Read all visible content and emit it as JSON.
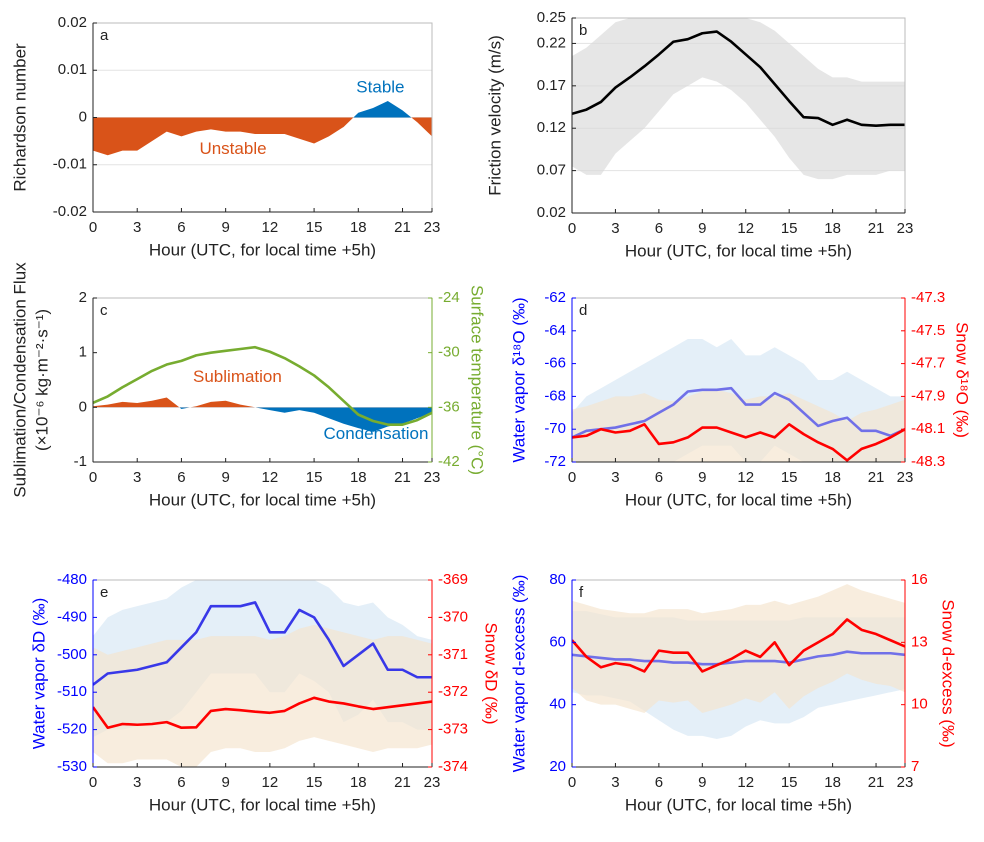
{
  "chart_data": [
    {
      "type": "area",
      "label": "a",
      "ylabel": "Richardson number",
      "xlabel": "Hour (UTC, for local time +5h)",
      "x": [
        0,
        1,
        2,
        3,
        4,
        5,
        6,
        7,
        8,
        9,
        10,
        11,
        12,
        13,
        14,
        15,
        16,
        17,
        18,
        19,
        20,
        21,
        22,
        23
      ],
      "xlim": [
        0,
        23
      ],
      "xticks": [
        0,
        3,
        6,
        9,
        12,
        15,
        18,
        21,
        23
      ],
      "ylim": [
        -0.02,
        0.02
      ],
      "yticks": [
        -0.02,
        -0.01,
        0,
        0.01,
        0.02
      ],
      "grid": true,
      "annotations": [
        "Stable",
        "Unstable"
      ],
      "series": [
        {
          "type": "area",
          "positive_color": "#0072bd",
          "negative_color": "#d95319",
          "values": [
            -0.007,
            -0.008,
            -0.007,
            -0.007,
            -0.005,
            -0.003,
            -0.004,
            -0.003,
            -0.0025,
            -0.003,
            -0.003,
            -0.0035,
            -0.0035,
            -0.0035,
            -0.0045,
            -0.0055,
            -0.004,
            -0.002,
            0.001,
            0.002,
            0.0035,
            0.0015,
            -0.001,
            -0.004
          ]
        }
      ]
    },
    {
      "type": "line",
      "label": "b",
      "ylabel": "Friction velocity (m/s)",
      "xlabel": "Hour (UTC, for local time +5h)",
      "x": [
        0,
        1,
        2,
        3,
        4,
        5,
        6,
        7,
        8,
        9,
        10,
        11,
        12,
        13,
        14,
        15,
        16,
        17,
        18,
        19,
        20,
        21,
        22,
        23
      ],
      "xlim": [
        0,
        23
      ],
      "xticks": [
        0,
        3,
        6,
        9,
        12,
        15,
        18,
        21,
        23
      ],
      "ylim": [
        0.02,
        0.25
      ],
      "yticks": [
        0.02,
        0.07,
        0.12,
        0.17,
        0.22,
        0.25
      ],
      "grid": true,
      "series": [
        {
          "type": "line",
          "color": "#000000",
          "band_color": "#d9d9d9",
          "values": [
            0.137,
            0.142,
            0.151,
            0.168,
            0.18,
            0.193,
            0.207,
            0.222,
            0.225,
            0.232,
            0.234,
            0.222,
            0.207,
            0.192,
            0.172,
            0.152,
            0.133,
            0.132,
            0.124,
            0.13,
            0.124,
            0.123,
            0.124,
            0.124
          ],
          "upper": [
            0.205,
            0.215,
            0.23,
            0.245,
            0.25,
            0.25,
            0.25,
            0.25,
            0.25,
            0.25,
            0.25,
            0.25,
            0.25,
            0.245,
            0.235,
            0.22,
            0.205,
            0.19,
            0.18,
            0.18,
            0.175,
            0.175,
            0.175,
            0.175
          ],
          "lower": [
            0.075,
            0.065,
            0.065,
            0.09,
            0.105,
            0.12,
            0.14,
            0.16,
            0.17,
            0.18,
            0.175,
            0.165,
            0.15,
            0.13,
            0.11,
            0.085,
            0.065,
            0.06,
            0.06,
            0.065,
            0.065,
            0.065,
            0.07,
            0.07
          ]
        }
      ]
    },
    {
      "type": "area",
      "label": "c",
      "ylabel": [
        "Sublimation/Condensation Flux",
        "(×10⁻⁶ kg·m⁻²·s⁻¹)"
      ],
      "y2label": "Surface temperature (°C)",
      "xlabel": "Hour (UTC, for local time +5h)",
      "x": [
        0,
        1,
        2,
        3,
        4,
        5,
        6,
        7,
        8,
        9,
        10,
        11,
        12,
        13,
        14,
        15,
        16,
        17,
        18,
        19,
        20,
        21,
        22,
        23
      ],
      "xlim": [
        0,
        23
      ],
      "xticks": [
        0,
        3,
        6,
        9,
        12,
        15,
        18,
        21,
        23
      ],
      "ylim": [
        -1,
        2
      ],
      "yticks": [
        -1,
        0,
        1,
        2
      ],
      "y2lim": [
        -42,
        -24
      ],
      "y2ticks": [
        -42,
        -36,
        -30,
        -24
      ],
      "y2_color": "#77ac30",
      "annotations": [
        "Sublimation",
        "Condensation"
      ],
      "series": [
        {
          "type": "area",
          "positive_color": "#d95319",
          "negative_color": "#0072bd",
          "values": [
            0.02,
            0.05,
            0.1,
            0.08,
            0.12,
            0.18,
            -0.03,
            0.02,
            0.1,
            0.12,
            0.05,
            0.0,
            -0.05,
            -0.1,
            -0.05,
            -0.1,
            -0.2,
            -0.3,
            -0.38,
            -0.45,
            -0.35,
            -0.3,
            -0.2,
            -0.1
          ]
        },
        {
          "type": "line",
          "axis": "y2",
          "color": "#77ac30",
          "values": [
            -35.5,
            -34.8,
            -33.8,
            -32.9,
            -32.0,
            -31.3,
            -30.9,
            -30.3,
            -30.0,
            -29.8,
            -29.6,
            -29.4,
            -29.9,
            -30.6,
            -31.5,
            -32.5,
            -33.8,
            -35.3,
            -36.8,
            -37.5,
            -37.9,
            -37.9,
            -37.4,
            -36.6
          ]
        }
      ]
    },
    {
      "type": "line",
      "label": "d",
      "ylabel": "Water vapor δ¹⁸O (‰)",
      "y2label": "Snow δ¹⁸O (‰)",
      "xlabel": "Hour (UTC, for local time +5h)",
      "x": [
        0,
        1,
        2,
        3,
        4,
        5,
        6,
        7,
        8,
        9,
        10,
        11,
        12,
        13,
        14,
        15,
        16,
        17,
        18,
        19,
        20,
        21,
        22,
        23
      ],
      "xlim": [
        0,
        23
      ],
      "xticks": [
        0,
        3,
        6,
        9,
        12,
        15,
        18,
        21,
        23
      ],
      "ylim": [
        -72,
        -62
      ],
      "yticks": [
        -72,
        -70,
        -68,
        -66,
        -64,
        -62
      ],
      "y2lim": [
        -48.3,
        -47.3
      ],
      "y2ticks": [
        -48.3,
        -48.1,
        -47.9,
        -47.7,
        -47.5,
        -47.3
      ],
      "y_color": "#0000ff",
      "y2_color": "#ff0000",
      "series": [
        {
          "type": "line",
          "color": "#7070e8",
          "band_color": "#d6e6f5",
          "values": [
            -70.5,
            -70.1,
            -70.0,
            -69.9,
            -69.7,
            -69.5,
            -69.0,
            -68.5,
            -67.7,
            -67.6,
            -67.6,
            -67.5,
            -68.5,
            -68.5,
            -67.8,
            -68.2,
            -69.0,
            -69.8,
            -69.5,
            -69.3,
            -70.1,
            -70.1,
            -70.4,
            -70.0
          ],
          "upper": [
            -69,
            -68,
            -67.5,
            -67,
            -66.5,
            -66,
            -65.5,
            -65,
            -64.5,
            -64.5,
            -65,
            -64.5,
            -65.5,
            -65.5,
            -65,
            -65.5,
            -66,
            -67,
            -67,
            -66.5,
            -67,
            -67.5,
            -68,
            -68
          ],
          "lower": [
            -72,
            -72,
            -72,
            -72,
            -72,
            -72,
            -72,
            -72,
            -71.5,
            -71,
            -71,
            -71,
            -72,
            -72,
            -71,
            -71.5,
            -72,
            -72,
            -72,
            -72,
            -72,
            -72,
            -72,
            -72
          ]
        },
        {
          "type": "line",
          "axis": "y2",
          "color": "#ff0000",
          "band_color": "#f5e3cc",
          "values": [
            -48.15,
            -48.14,
            -48.1,
            -48.12,
            -48.11,
            -48.07,
            -48.19,
            -48.18,
            -48.15,
            -48.09,
            -48.09,
            -48.12,
            -48.15,
            -48.12,
            -48.15,
            -48.07,
            -48.13,
            -48.18,
            -48.22,
            -48.29,
            -48.22,
            -48.19,
            -48.15,
            -48.1
          ],
          "upper": [
            -47.98,
            -47.96,
            -47.93,
            -47.9,
            -47.9,
            -47.88,
            -47.92,
            -47.93,
            -47.9,
            -47.87,
            -47.86,
            -47.88,
            -47.92,
            -47.9,
            -47.9,
            -47.88,
            -47.92,
            -47.96,
            -48.0,
            -48.05,
            -48.0,
            -47.98,
            -47.95,
            -47.92
          ],
          "lower": [
            -48.32,
            -48.33,
            -48.3,
            -48.31,
            -48.32,
            -48.3,
            -48.34,
            -48.35,
            -48.33,
            -48.3,
            -48.3,
            -48.31,
            -48.33,
            -48.32,
            -48.33,
            -48.3,
            -48.32,
            -48.35,
            -48.38,
            -48.4,
            -48.38,
            -48.36,
            -48.34,
            -48.3
          ]
        }
      ]
    },
    {
      "type": "line",
      "label": "e",
      "ylabel": "Water vapor δD (‰)",
      "y2label": "Snow δD (‰)",
      "xlabel": "Hour (UTC, for local time +5h)",
      "x": [
        0,
        1,
        2,
        3,
        4,
        5,
        6,
        7,
        8,
        9,
        10,
        11,
        12,
        13,
        14,
        15,
        16,
        17,
        18,
        19,
        20,
        21,
        22,
        23
      ],
      "xlim": [
        0,
        23
      ],
      "xticks": [
        0,
        3,
        6,
        9,
        12,
        15,
        18,
        21,
        23
      ],
      "ylim": [
        -530,
        -480
      ],
      "yticks": [
        -530,
        -520,
        -510,
        -500,
        -490,
        -480
      ],
      "y2lim": [
        -374,
        -369
      ],
      "y2ticks": [
        -374,
        -373,
        -372,
        -371,
        -370,
        -369
      ],
      "y_color": "#0000ff",
      "y2_color": "#ff0000",
      "series": [
        {
          "type": "line",
          "color": "#3838e8",
          "band_color": "#d6e6f5",
          "values": [
            -508,
            -505,
            -504.5,
            -504,
            -503,
            -502,
            -498,
            -494,
            -487,
            -487,
            -487,
            -486,
            -494,
            -494,
            -488,
            -490,
            -496,
            -503,
            -500,
            -497,
            -504,
            -504,
            -506,
            -506
          ],
          "upper": [
            -495,
            -490,
            -488,
            -487,
            -486,
            -485,
            -482,
            -480,
            -480,
            -480,
            -480,
            -480,
            -480,
            -480,
            -480,
            -480,
            -482,
            -486,
            -487,
            -486,
            -490,
            -492,
            -495,
            -496
          ],
          "lower": [
            -522,
            -520,
            -520,
            -519,
            -518,
            -518,
            -515,
            -510,
            -505,
            -505,
            -505,
            -505,
            -510,
            -510,
            -505,
            -507,
            -510,
            -518,
            -516,
            -512,
            -518,
            -518,
            -520,
            -520
          ]
        },
        {
          "type": "line",
          "axis": "y2",
          "color": "#ff0000",
          "band_color": "#f5e3cc",
          "values": [
            -372.4,
            -372.95,
            -372.85,
            -372.87,
            -372.85,
            -372.8,
            -372.95,
            -372.94,
            -372.5,
            -372.45,
            -372.48,
            -372.52,
            -372.55,
            -372.5,
            -372.3,
            -372.15,
            -372.25,
            -372.3,
            -372.38,
            -372.45,
            -372.4,
            -372.35,
            -372.3,
            -372.25
          ],
          "upper": [
            -370.8,
            -371,
            -370.9,
            -370.8,
            -370.7,
            -370.6,
            -370.6,
            -370.6,
            -370.5,
            -370.5,
            -370.5,
            -370.5,
            -370.6,
            -370.5,
            -370.3,
            -370.2,
            -370.3,
            -370.4,
            -370.5,
            -370.6,
            -370.5,
            -370.5,
            -370.6,
            -370.7
          ],
          "lower": [
            -373.6,
            -373.9,
            -373.9,
            -373.8,
            -373.8,
            -373.8,
            -374,
            -374,
            -373.6,
            -373.5,
            -373.5,
            -373.6,
            -373.6,
            -373.5,
            -373.3,
            -373.2,
            -373.3,
            -373.4,
            -373.5,
            -373.6,
            -373.5,
            -373.5,
            -373.5,
            -373.4
          ]
        }
      ]
    },
    {
      "type": "line",
      "label": "f",
      "ylabel": "Water vapor d-excess (‰)",
      "y2label": "Snow d-excess (‰)",
      "xlabel": "Hour (UTC, for local time +5h)",
      "x": [
        0,
        1,
        2,
        3,
        4,
        5,
        6,
        7,
        8,
        9,
        10,
        11,
        12,
        13,
        14,
        15,
        16,
        17,
        18,
        19,
        20,
        21,
        22,
        23
      ],
      "xlim": [
        0,
        23
      ],
      "xticks": [
        0,
        3,
        6,
        9,
        12,
        15,
        18,
        21,
        23
      ],
      "ylim": [
        20,
        80
      ],
      "yticks": [
        20,
        40,
        60,
        80
      ],
      "y2lim": [
        7,
        16
      ],
      "y2ticks": [
        7,
        10,
        13,
        16
      ],
      "y_color": "#0000ff",
      "y2_color": "#ff0000",
      "series": [
        {
          "type": "line",
          "color": "#7070e8",
          "band_color": "#d6e6f5",
          "values": [
            56,
            55.5,
            55,
            54.5,
            54.5,
            54,
            54,
            53.5,
            53.5,
            53,
            53,
            53.5,
            54,
            54,
            54,
            53.5,
            54.5,
            55.5,
            56,
            57,
            56.5,
            56.5,
            56.5,
            56
          ],
          "upper": [
            70,
            70,
            69,
            68,
            68,
            68,
            68,
            68,
            67,
            67,
            67,
            67,
            67,
            67,
            67,
            67,
            68,
            68,
            68,
            68,
            68,
            68,
            68,
            68
          ],
          "lower": [
            44,
            43,
            43,
            42,
            41,
            38,
            35,
            32,
            30,
            30,
            29,
            30,
            33,
            35,
            34,
            34,
            36,
            39,
            40,
            41,
            42,
            43,
            44,
            45
          ]
        },
        {
          "type": "line",
          "axis": "y2",
          "color": "#ff0000",
          "band_color": "#f5e3cc",
          "values": [
            13.1,
            12.3,
            11.8,
            12.0,
            11.9,
            11.6,
            12.6,
            12.5,
            12.5,
            11.6,
            11.9,
            12.2,
            12.6,
            12.3,
            13.0,
            11.9,
            12.6,
            13.0,
            13.4,
            14.1,
            13.6,
            13.4,
            13.1,
            12.8
          ],
          "upper": [
            15,
            14.8,
            14.6,
            14.5,
            14.4,
            14.4,
            14.6,
            14.6,
            14.6,
            14.4,
            14.5,
            14.6,
            14.8,
            14.8,
            15,
            14.8,
            15,
            15.2,
            15.5,
            15.8,
            15.5,
            15.3,
            15.1,
            14.9
          ],
          "lower": [
            10.8,
            10.2,
            10,
            10,
            9.8,
            9.6,
            10.2,
            10.1,
            10.2,
            9.6,
            9.8,
            10,
            10.3,
            10.1,
            10.6,
            9.8,
            10.4,
            10.8,
            11.1,
            11.5,
            11.2,
            11,
            10.9,
            10.6
          ]
        }
      ]
    }
  ]
}
